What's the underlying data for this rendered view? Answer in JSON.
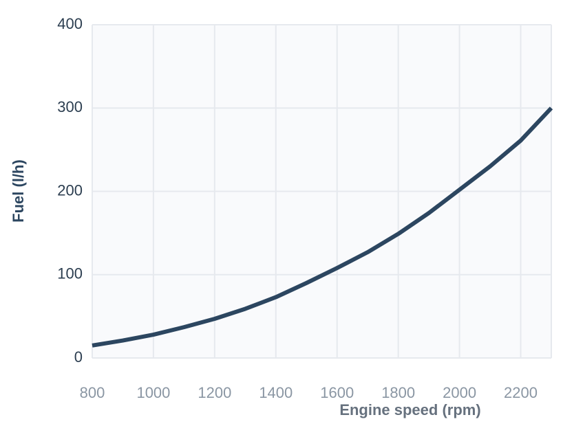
{
  "chart_data": {
    "type": "line",
    "x_label": "Engine speed (rpm)",
    "y_label": "Fuel (l/h)",
    "x": [
      800,
      900,
      1000,
      1100,
      1200,
      1300,
      1400,
      1500,
      1600,
      1700,
      1800,
      1900,
      2000,
      2100,
      2200,
      2300
    ],
    "values": [
      15,
      21,
      28,
      37,
      47,
      59,
      73,
      90,
      108,
      127,
      149,
      174,
      202,
      230,
      261,
      300
    ],
    "color": "#2c4660",
    "xlim": [
      800,
      2300
    ],
    "xticks": [
      800,
      1000,
      1200,
      1400,
      1600,
      1800,
      2000,
      2200
    ],
    "ylim": [
      0,
      400
    ],
    "yticks": [
      0,
      100,
      200,
      300,
      400
    ],
    "grid": true
  }
}
